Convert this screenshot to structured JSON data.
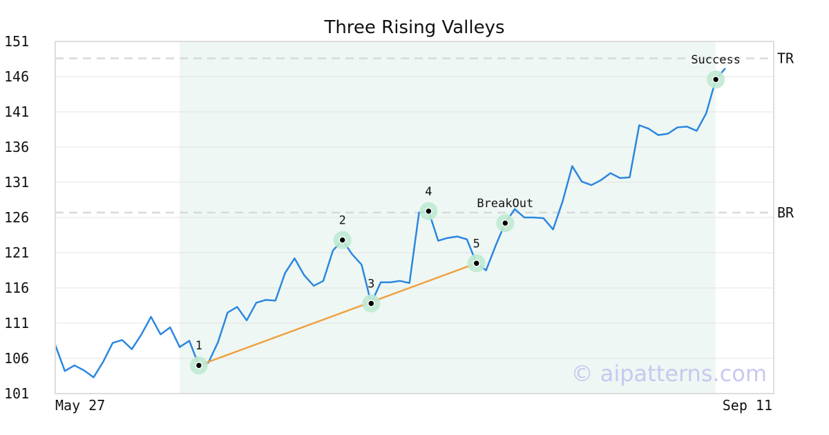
{
  "chart_data": {
    "type": "line",
    "title": "Three Rising Valleys",
    "xlabel": "",
    "ylabel": "",
    "ylim": [
      101,
      151
    ],
    "y_ticks": [
      151,
      146,
      141,
      136,
      131,
      126,
      121,
      116,
      111,
      106,
      101
    ],
    "x_tick_labels": [
      "May 27",
      "Sep 11"
    ],
    "grid": "horizontal",
    "series": [
      {
        "color": "#2a86e0",
        "values": [
          107.9,
          104.2,
          105.0,
          104.3,
          103.3,
          105.5,
          108.2,
          108.6,
          107.3,
          109.4,
          111.9,
          109.4,
          110.4,
          107.6,
          108.5,
          105.0,
          105.4,
          108.3,
          112.5,
          113.3,
          111.4,
          113.9,
          114.3,
          114.2,
          118.1,
          120.2,
          117.8,
          116.3,
          117.0,
          121.3,
          122.8,
          120.8,
          119.3,
          113.8,
          116.8,
          116.8,
          117.0,
          116.7,
          126.7,
          126.9,
          122.7,
          123.1,
          123.3,
          122.9,
          119.5,
          118.5,
          122.0,
          125.2,
          127.2,
          126.0,
          126.0,
          125.9,
          124.3,
          128.3,
          133.3,
          131.1,
          130.6,
          131.3,
          132.3,
          131.6,
          131.7,
          139.1,
          138.6,
          137.7,
          137.9,
          138.8,
          138.9,
          138.3,
          140.8,
          145.6,
          147.2
        ]
      }
    ],
    "highlight_region": {
      "start_index": 13,
      "end_index": 69,
      "color": "#eef7f3"
    },
    "levels": [
      {
        "label": "TR",
        "value": 148.6
      },
      {
        "label": "BR",
        "value": 126.7
      }
    ],
    "trend_line": {
      "from_index": 15,
      "to_index": 44,
      "color": "#f0a040"
    },
    "annotations": [
      {
        "label": "1",
        "index": 15,
        "value": 105.0
      },
      {
        "label": "2",
        "index": 30,
        "value": 122.8
      },
      {
        "label": "3",
        "index": 33,
        "value": 113.8
      },
      {
        "label": "4",
        "index": 39,
        "value": 126.9
      },
      {
        "label": "5",
        "index": 44,
        "value": 119.5
      },
      {
        "label": "BreakOut",
        "index": 47,
        "value": 125.2
      },
      {
        "label": "Success",
        "index": 69,
        "value": 145.6
      }
    ],
    "watermark": "© aipatterns.com"
  }
}
